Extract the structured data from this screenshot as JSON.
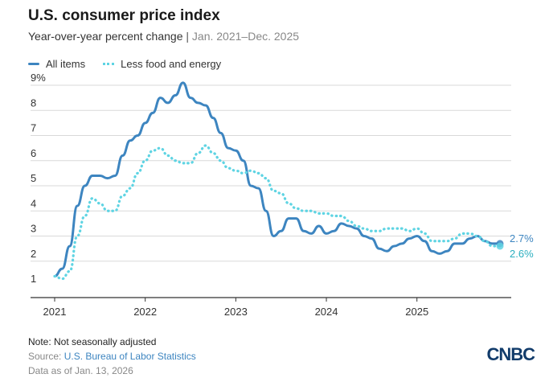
{
  "header": {
    "title": "U.S. consumer price index",
    "subtitle_main": "Year-over-year percent change",
    "subtitle_sep": " | ",
    "subtitle_range": "Jan. 2021–Dec. 2025"
  },
  "legend": {
    "all_items": "All items",
    "core": "Less food and energy"
  },
  "footer": {
    "note": "Note: Not seasonally adjusted",
    "source_prefix": "Source: ",
    "source_link": "U.S. Bureau of Labor Statistics",
    "as_of": "Data as of Jan. 13, 2026",
    "logo": "CNBC"
  },
  "colors": {
    "all_items": "#3d85c0",
    "core": "#5fd4e3",
    "grid": "#d9d9d9",
    "axis": "#333333"
  },
  "chart_data": {
    "type": "line",
    "title": "U.S. consumer price index",
    "subtitle": "Year-over-year percent change | Jan. 2021–Dec. 2025",
    "xlabel": "",
    "ylabel": "",
    "ylim": [
      1,
      9
    ],
    "y_ticks": [
      "1",
      "2",
      "3",
      "4",
      "5",
      "6",
      "7",
      "8",
      "9%"
    ],
    "y_tick_values": [
      1,
      2,
      3,
      4,
      5,
      6,
      7,
      8,
      9
    ],
    "x_ticks": [
      "2021",
      "2022",
      "2023",
      "2024",
      "2025"
    ],
    "x_tick_values": [
      2021,
      2022,
      2023,
      2024,
      2025
    ],
    "xlim": [
      "2021-01",
      "2025-12"
    ],
    "grid": "horizontal",
    "legend_position": "top-left",
    "x": [
      "2021-01",
      "2021-02",
      "2021-03",
      "2021-04",
      "2021-05",
      "2021-06",
      "2021-07",
      "2021-08",
      "2021-09",
      "2021-10",
      "2021-11",
      "2021-12",
      "2022-01",
      "2022-02",
      "2022-03",
      "2022-04",
      "2022-05",
      "2022-06",
      "2022-07",
      "2022-08",
      "2022-09",
      "2022-10",
      "2022-11",
      "2022-12",
      "2023-01",
      "2023-02",
      "2023-03",
      "2023-04",
      "2023-05",
      "2023-06",
      "2023-07",
      "2023-08",
      "2023-09",
      "2023-10",
      "2023-11",
      "2023-12",
      "2024-01",
      "2024-02",
      "2024-03",
      "2024-04",
      "2024-05",
      "2024-06",
      "2024-07",
      "2024-08",
      "2024-09",
      "2024-10",
      "2024-11",
      "2024-12",
      "2025-01",
      "2025-02",
      "2025-03",
      "2025-04",
      "2025-05",
      "2025-06",
      "2025-07",
      "2025-08",
      "2025-09",
      "2025-10",
      "2025-11",
      "2025-12"
    ],
    "series": [
      {
        "name": "All items",
        "style": "solid",
        "values": [
          1.4,
          1.7,
          2.6,
          4.2,
          5.0,
          5.4,
          5.4,
          5.3,
          5.4,
          6.2,
          6.8,
          7.0,
          7.5,
          7.9,
          8.5,
          8.3,
          8.6,
          9.1,
          8.5,
          8.3,
          8.2,
          7.7,
          7.1,
          6.5,
          6.4,
          6.0,
          5.0,
          4.9,
          4.0,
          3.0,
          3.2,
          3.7,
          3.7,
          3.2,
          3.1,
          3.4,
          3.1,
          3.2,
          3.5,
          3.4,
          3.3,
          3.0,
          2.9,
          2.5,
          2.4,
          2.6,
          2.7,
          2.9,
          3.0,
          2.8,
          2.4,
          2.3,
          2.4,
          2.7,
          2.7,
          2.9,
          3.0,
          2.8,
          2.7,
          2.7
        ],
        "end_label": "2.7%"
      },
      {
        "name": "Less food and energy",
        "style": "dotted",
        "values": [
          1.4,
          1.3,
          1.6,
          3.0,
          3.8,
          4.5,
          4.3,
          4.0,
          4.0,
          4.6,
          4.9,
          5.5,
          6.0,
          6.4,
          6.5,
          6.2,
          6.0,
          5.9,
          5.9,
          6.3,
          6.6,
          6.3,
          6.0,
          5.7,
          5.6,
          5.5,
          5.6,
          5.5,
          5.3,
          4.8,
          4.7,
          4.3,
          4.1,
          4.0,
          4.0,
          3.9,
          3.9,
          3.8,
          3.8,
          3.6,
          3.4,
          3.3,
          3.2,
          3.2,
          3.3,
          3.3,
          3.3,
          3.2,
          3.3,
          3.1,
          2.8,
          2.8,
          2.8,
          2.9,
          3.1,
          3.1,
          3.0,
          2.8,
          2.6,
          2.6
        ],
        "end_label": "2.6%"
      }
    ]
  }
}
